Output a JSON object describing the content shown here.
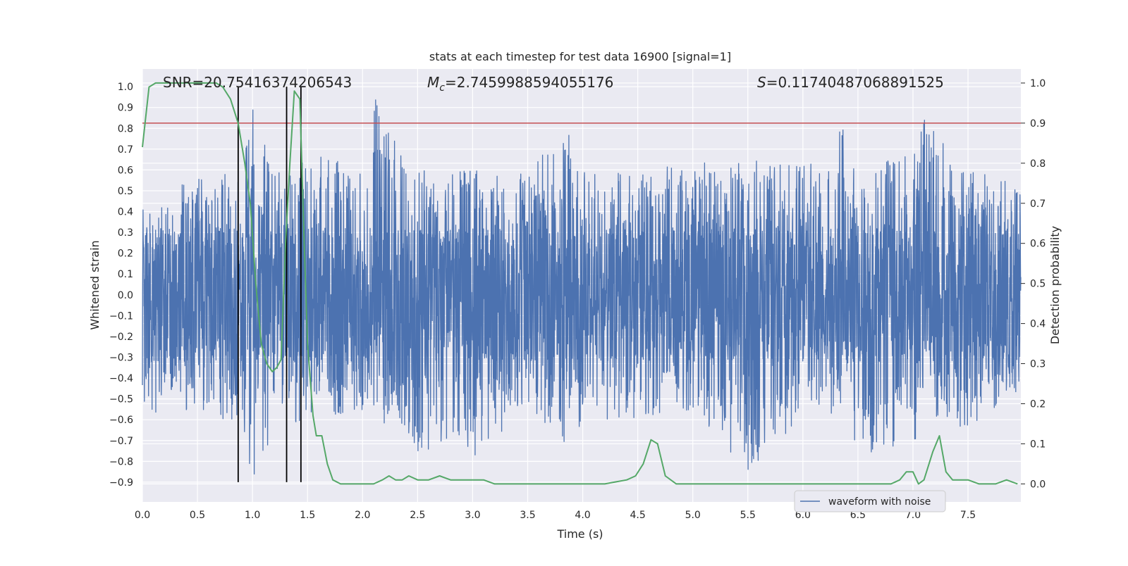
{
  "chart_data": {
    "type": "line",
    "title": "stats at each timestep for test data 16900 [signal=1]",
    "xlabel": "Time (s)",
    "ylabel_left": "Whitened strain",
    "ylabel_right": "Detection probability",
    "xlim": [
      0.0,
      7.98
    ],
    "ylim_left": [
      -0.995,
      1.085
    ],
    "ylim_right": [
      -0.045,
      1.035
    ],
    "x_ticks": [
      "0.0",
      "0.5",
      "1.0",
      "1.5",
      "2.0",
      "2.5",
      "3.0",
      "3.5",
      "4.0",
      "4.5",
      "5.0",
      "5.5",
      "6.0",
      "6.5",
      "7.0",
      "7.5"
    ],
    "y_ticks_left": [
      "1.0",
      "0.9",
      "0.8",
      "0.7",
      "0.6",
      "0.5",
      "0.4",
      "0.3",
      "0.2",
      "0.1",
      "0.0",
      "−0.1",
      "−0.2",
      "−0.3",
      "−0.4",
      "−0.5",
      "−0.6",
      "−0.7",
      "−0.8",
      "−0.9"
    ],
    "y_ticks_right": [
      "1.0",
      "0.9",
      "0.8",
      "0.7",
      "0.6",
      "0.5",
      "0.4",
      "0.3",
      "0.2",
      "0.1",
      "0.0"
    ],
    "grid": true,
    "legend_placement": "lower-right",
    "annotations": {
      "snr": "SNR=20.75416374206543",
      "mc_symbol": "M",
      "mc_sub": "c",
      "mc_value": "=2.7459988594055176",
      "s_symbol": "S",
      "s_value": "=0.11740487068891525"
    },
    "threshold": {
      "axis": "right",
      "value": 0.9,
      "color": "#c44e52"
    },
    "vertical_markers": {
      "x": [
        0.87,
        1.31,
        1.44
      ],
      "y_range_left": [
        -0.9,
        1.0
      ],
      "color": "#000000"
    },
    "series": [
      {
        "name": "waveform with noise",
        "axis": "left",
        "color": "#4c72b0",
        "kind": "dense noise waveform (~16000 samples)",
        "envelope": {
          "x": [
            0.0,
            0.5,
            0.9,
            1.0,
            1.2,
            1.5,
            2.0,
            2.05,
            2.5,
            3.0,
            3.5,
            3.9,
            4.0,
            4.5,
            5.0,
            5.5,
            6.0,
            6.35,
            6.5,
            7.0,
            7.1,
            7.5,
            7.98
          ],
          "upper": [
            0.42,
            0.58,
            0.65,
            0.9,
            0.6,
            0.7,
            0.6,
            1.0,
            0.6,
            0.6,
            0.62,
            0.78,
            0.6,
            0.6,
            0.63,
            0.66,
            0.62,
            0.82,
            0.6,
            0.68,
            0.89,
            0.6,
            0.55
          ],
          "lower": [
            -0.6,
            -0.55,
            -0.63,
            -0.9,
            -0.65,
            -0.6,
            -0.57,
            -0.55,
            -0.76,
            -0.79,
            -0.55,
            -0.79,
            -0.6,
            -0.6,
            -0.55,
            -0.86,
            -0.58,
            -0.58,
            -0.76,
            -0.78,
            -0.56,
            -0.66,
            -0.45
          ]
        }
      },
      {
        "axis": "right",
        "color": "#55a868",
        "x": [
          0.0,
          0.06,
          0.12,
          0.2,
          0.3,
          0.4,
          0.5,
          0.6,
          0.67,
          0.73,
          0.8,
          0.87,
          0.93,
          0.98,
          1.03,
          1.08,
          1.13,
          1.18,
          1.22,
          1.26,
          1.3,
          1.34,
          1.38,
          1.43,
          1.47,
          1.5,
          1.55,
          1.58,
          1.63,
          1.68,
          1.73,
          1.8,
          1.9,
          2.0,
          2.1,
          2.18,
          2.24,
          2.3,
          2.36,
          2.42,
          2.5,
          2.6,
          2.7,
          2.8,
          2.9,
          3.0,
          3.1,
          3.2,
          3.3,
          3.5,
          3.8,
          4.0,
          4.2,
          4.3,
          4.4,
          4.48,
          4.55,
          4.62,
          4.68,
          4.75,
          4.85,
          5.0,
          5.5,
          6.0,
          6.3,
          6.6,
          6.8,
          6.88,
          6.94,
          7.0,
          7.05,
          7.1,
          7.18,
          7.24,
          7.3,
          7.36,
          7.42,
          7.5,
          7.6,
          7.75,
          7.85,
          7.95
        ],
        "y": [
          0.84,
          0.99,
          1.0,
          1.0,
          1.0,
          1.0,
          1.0,
          1.0,
          1.0,
          0.99,
          0.96,
          0.9,
          0.8,
          0.7,
          0.5,
          0.35,
          0.3,
          0.28,
          0.29,
          0.31,
          0.6,
          0.8,
          0.98,
          0.96,
          0.6,
          0.35,
          0.17,
          0.12,
          0.12,
          0.05,
          0.01,
          0.0,
          0.0,
          0.0,
          0.0,
          0.01,
          0.02,
          0.01,
          0.01,
          0.02,
          0.01,
          0.01,
          0.02,
          0.01,
          0.01,
          0.01,
          0.01,
          0.0,
          0.0,
          0.0,
          0.0,
          0.0,
          0.0,
          0.005,
          0.01,
          0.02,
          0.05,
          0.11,
          0.1,
          0.02,
          0.0,
          0.0,
          0.0,
          0.0,
          0.0,
          0.0,
          0.0,
          0.01,
          0.03,
          0.03,
          0.0,
          0.01,
          0.08,
          0.12,
          0.03,
          0.01,
          0.01,
          0.01,
          0.0,
          0.0,
          0.01,
          0.0
        ]
      }
    ]
  }
}
